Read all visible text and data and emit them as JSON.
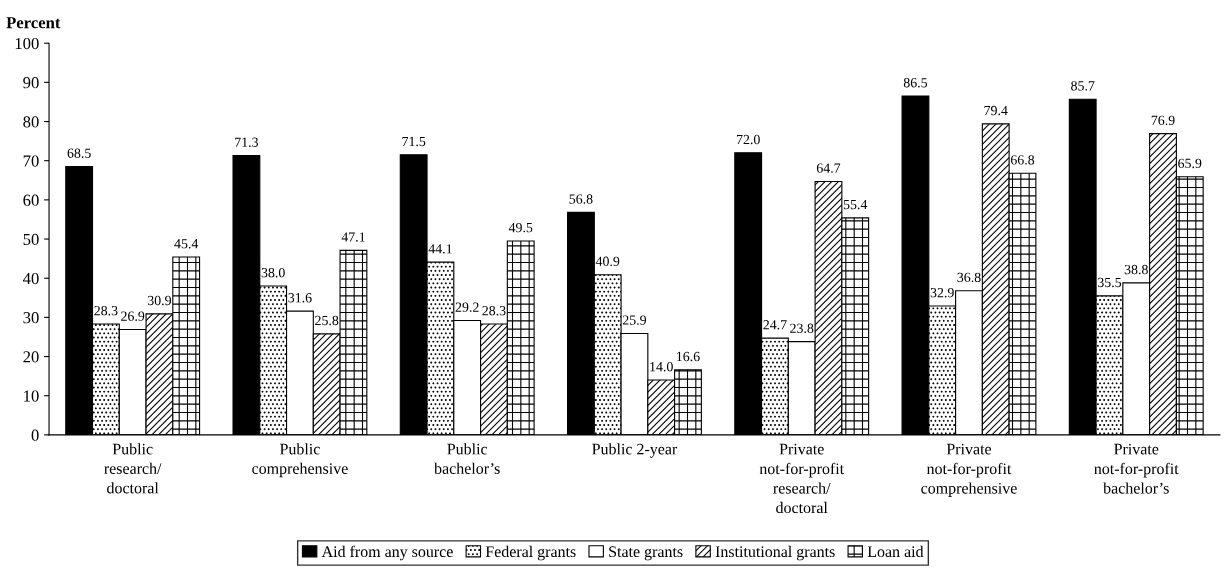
{
  "chart_data": {
    "type": "bar",
    "ylabel": "Percent",
    "categories": [
      "Public\nresearch/\ndoctoral",
      "Public\ncomprehensive",
      "Public\nbachelor’s",
      "Public 2-year",
      "Private\nnot-for-profit\nresearch/\ndoctoral",
      "Private\nnot-for-profit\ncomprehensive",
      "Private\nnot-for-profit\nbachelor’s"
    ],
    "series": [
      {
        "name": "Aid from any source",
        "color": "#000000",
        "values": [
          68.5,
          71.3,
          71.5,
          56.8,
          72.0,
          86.5,
          85.7
        ],
        "value_labels": [
          "68.5",
          "71.3",
          "71.5",
          "56.8",
          "72.0",
          "86.5",
          "85.7"
        ]
      },
      {
        "name": "Federal grants",
        "color": "#000000",
        "values": [
          28.3,
          38.0,
          44.1,
          40.9,
          24.7,
          32.9,
          35.5
        ],
        "value_labels": [
          "28.3",
          "38.0",
          "44.1",
          "40.9",
          "24.7",
          "32.9",
          "35.5"
        ]
      },
      {
        "name": "State grants",
        "color": "#ffffff",
        "values": [
          26.9,
          31.6,
          29.2,
          25.9,
          23.8,
          36.8,
          38.8
        ],
        "value_labels": [
          "26.9",
          "31.6",
          "29.2",
          "25.9",
          "23.8",
          "36.8",
          "38.8"
        ]
      },
      {
        "name": "Institutional grants",
        "color": "#000000",
        "values": [
          30.9,
          25.8,
          28.3,
          14.0,
          64.7,
          79.4,
          76.9
        ],
        "value_labels": [
          "30.9",
          "25.8",
          "28.3",
          "14.0",
          "64.7",
          "79.4",
          "76.9"
        ]
      },
      {
        "name": "Loan aid",
        "color": "#000000",
        "values": [
          45.4,
          47.1,
          49.5,
          16.6,
          55.4,
          66.8,
          65.9
        ],
        "value_labels": [
          "45.4",
          "47.1",
          "49.5",
          "16.6",
          "55.4",
          "66.8",
          "65.9"
        ]
      }
    ],
    "ylim": [
      0,
      100
    ],
    "yticks": [
      0,
      10,
      20,
      30,
      40,
      50,
      60,
      70,
      80,
      90,
      100
    ],
    "legend": "bottom",
    "grid": false
  }
}
